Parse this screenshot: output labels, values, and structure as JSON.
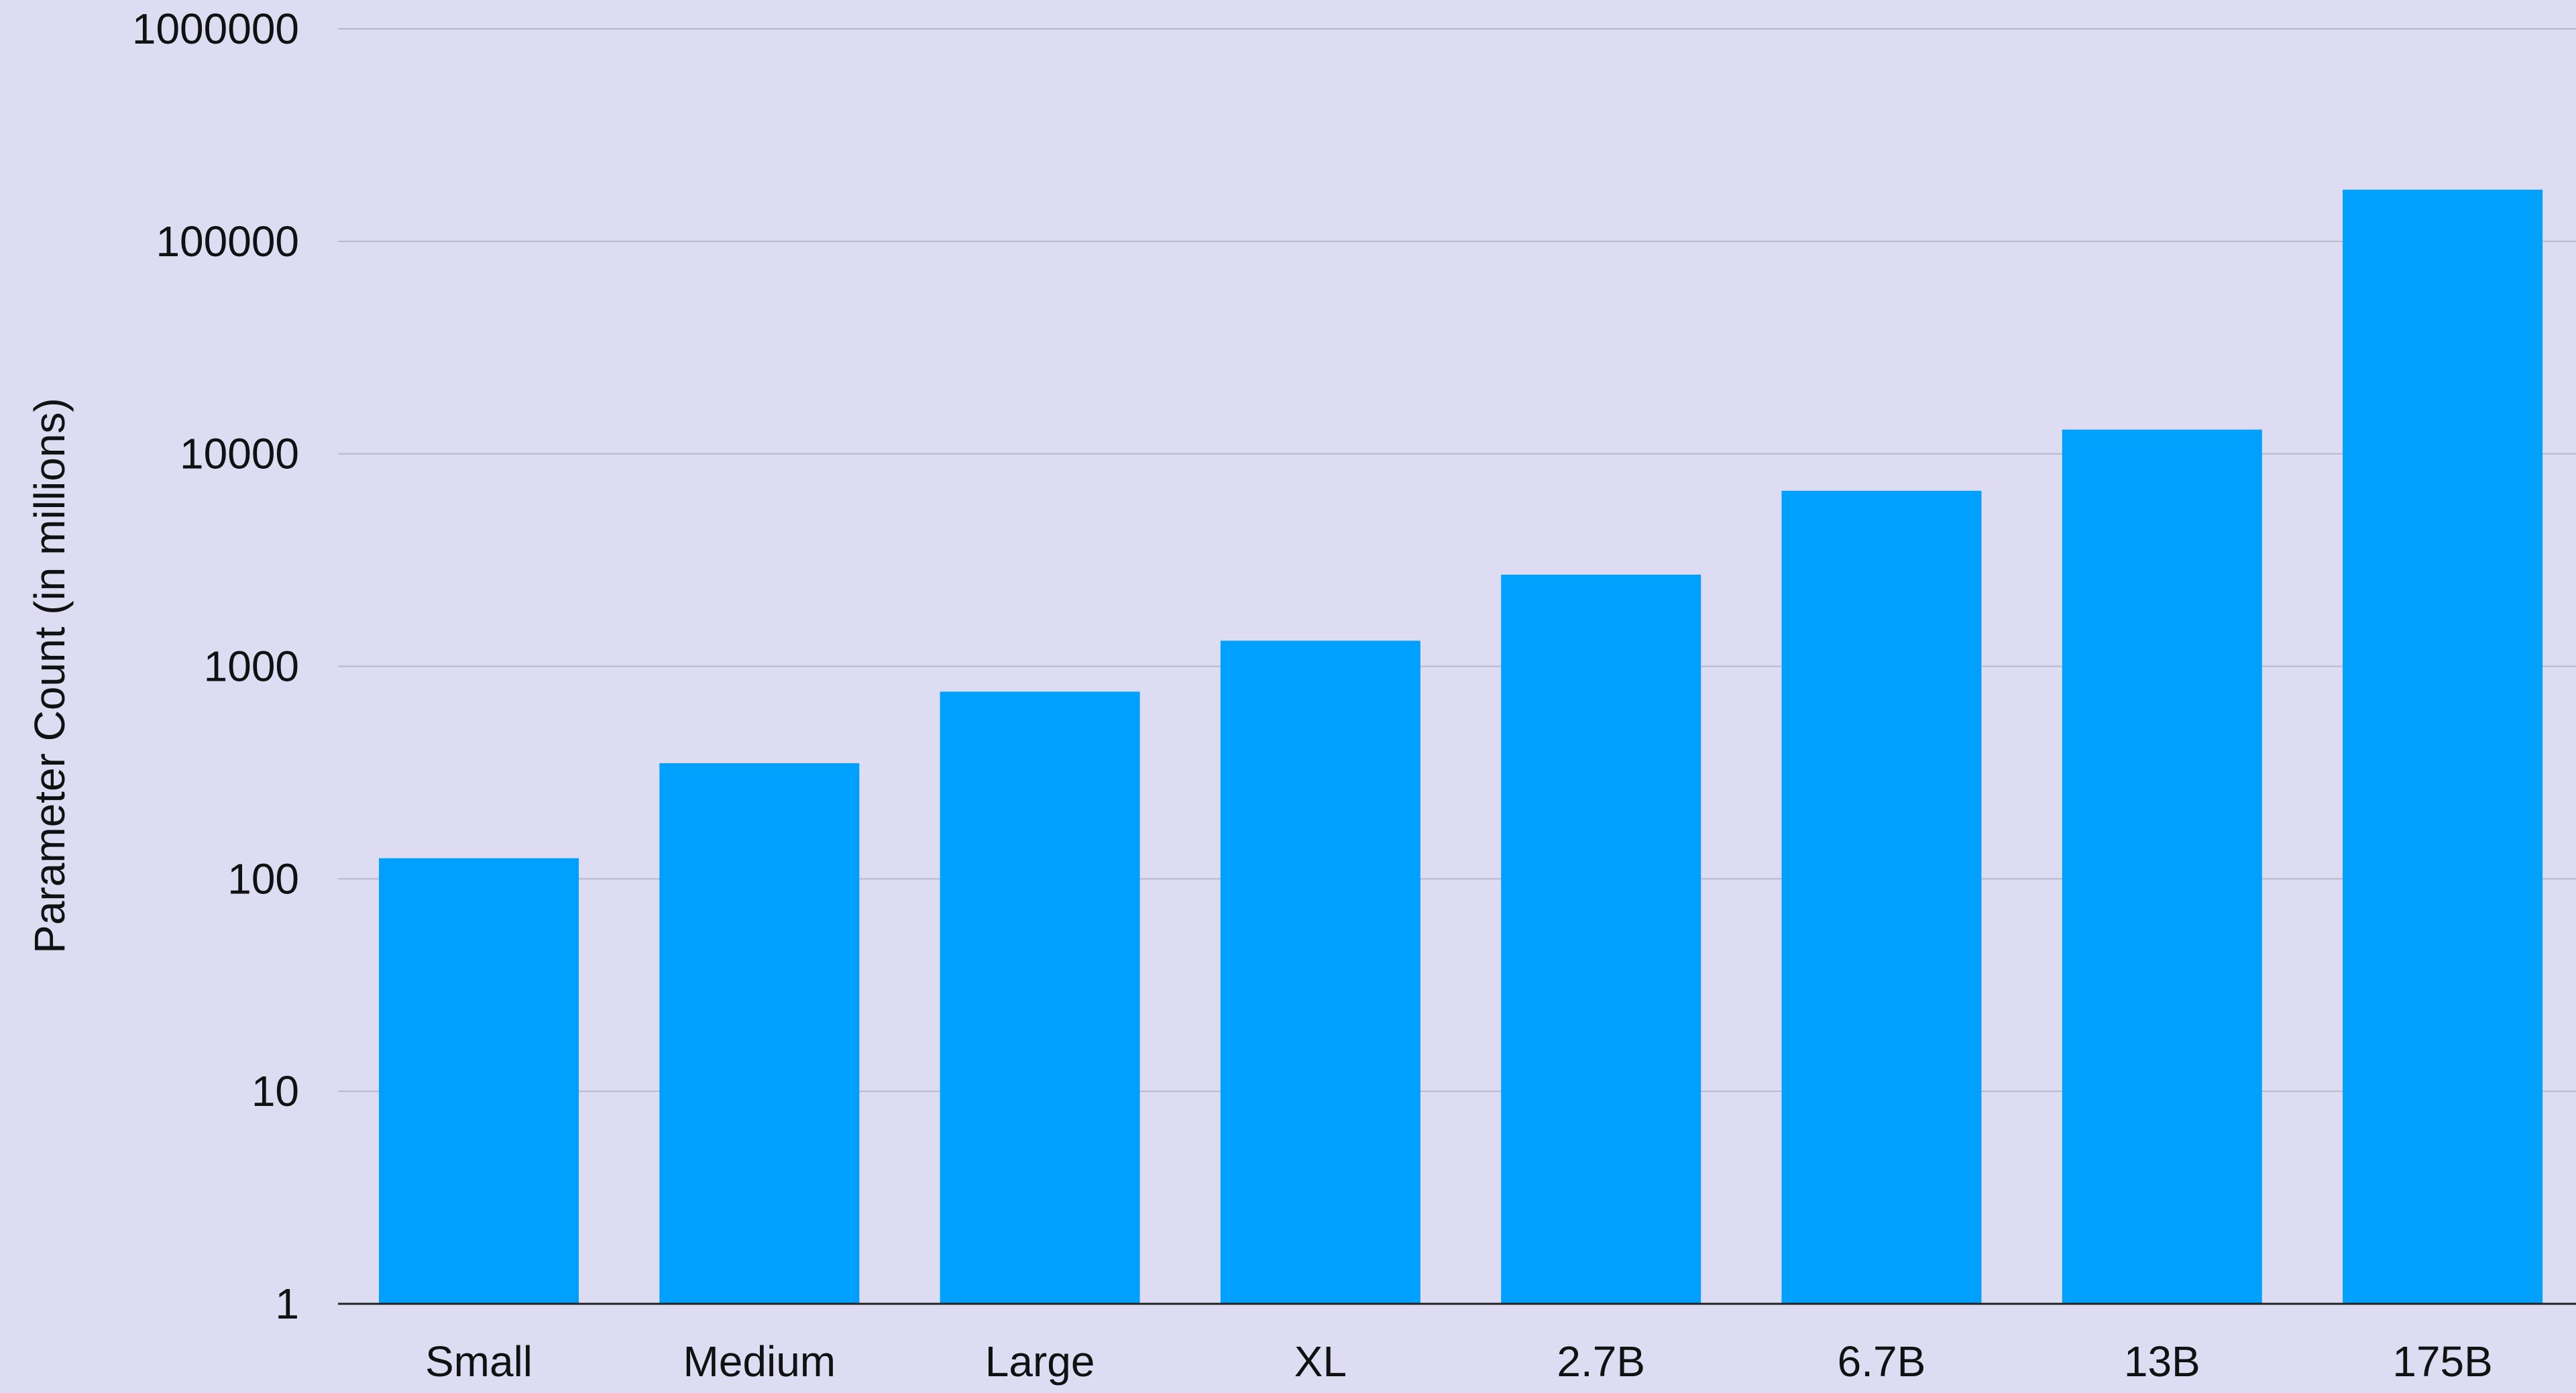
{
  "chart_data": {
    "type": "bar",
    "title": "",
    "xlabel": "",
    "ylabel": "Parameter Count (in millions)",
    "scale": "log",
    "ylim": [
      1,
      1000000
    ],
    "yticks": [
      "1",
      "10",
      "100",
      "1000",
      "10000",
      "100000",
      "1000000"
    ],
    "categories": [
      "Small",
      "Medium",
      "Large",
      "XL",
      "2.7B",
      "6.7B",
      "13B",
      "175B"
    ],
    "values": [
      125,
      350,
      760,
      1320,
      2700,
      6700,
      13000,
      175000
    ],
    "grid": true,
    "legend": "none",
    "colors": {
      "bar": "#00a0ff",
      "background": "#dedcf3",
      "grid": "#b9b7cc",
      "axis": "#222222"
    }
  }
}
